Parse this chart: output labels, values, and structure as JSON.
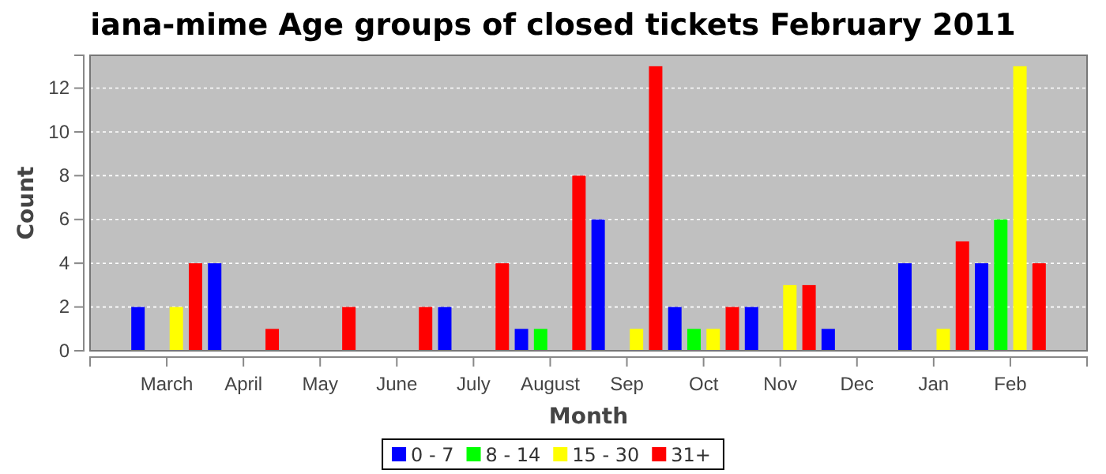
{
  "chart_data": {
    "type": "bar",
    "title": "iana-mime Age groups of closed tickets February 2011",
    "xlabel": "Month",
    "ylabel": "Count",
    "categories": [
      "March",
      "April",
      "May",
      "June",
      "July",
      "August",
      "Sep",
      "Oct",
      "Nov",
      "Dec",
      "Jan",
      "Feb"
    ],
    "series": [
      {
        "name": "0 - 7",
        "color": "#0000ff",
        "values": [
          2,
          4,
          0,
          0,
          2,
          1,
          6,
          2,
          2,
          1,
          4,
          4
        ]
      },
      {
        "name": "8 - 14",
        "color": "#00ff00",
        "values": [
          0,
          0,
          0,
          0,
          0,
          1,
          0,
          1,
          0,
          0,
          0,
          6
        ]
      },
      {
        "name": "15 - 30",
        "color": "#ffff00",
        "values": [
          2,
          0,
          0,
          0,
          0,
          0,
          1,
          1,
          3,
          0,
          1,
          13
        ]
      },
      {
        "name": "31+",
        "color": "#ff0000",
        "values": [
          4,
          1,
          2,
          2,
          4,
          8,
          13,
          2,
          3,
          0,
          5,
          4
        ]
      }
    ],
    "ylim": [
      0,
      13.5
    ],
    "yticks": [
      0,
      2,
      4,
      6,
      8,
      10,
      12
    ],
    "grid": "y",
    "legend": "bottom"
  }
}
